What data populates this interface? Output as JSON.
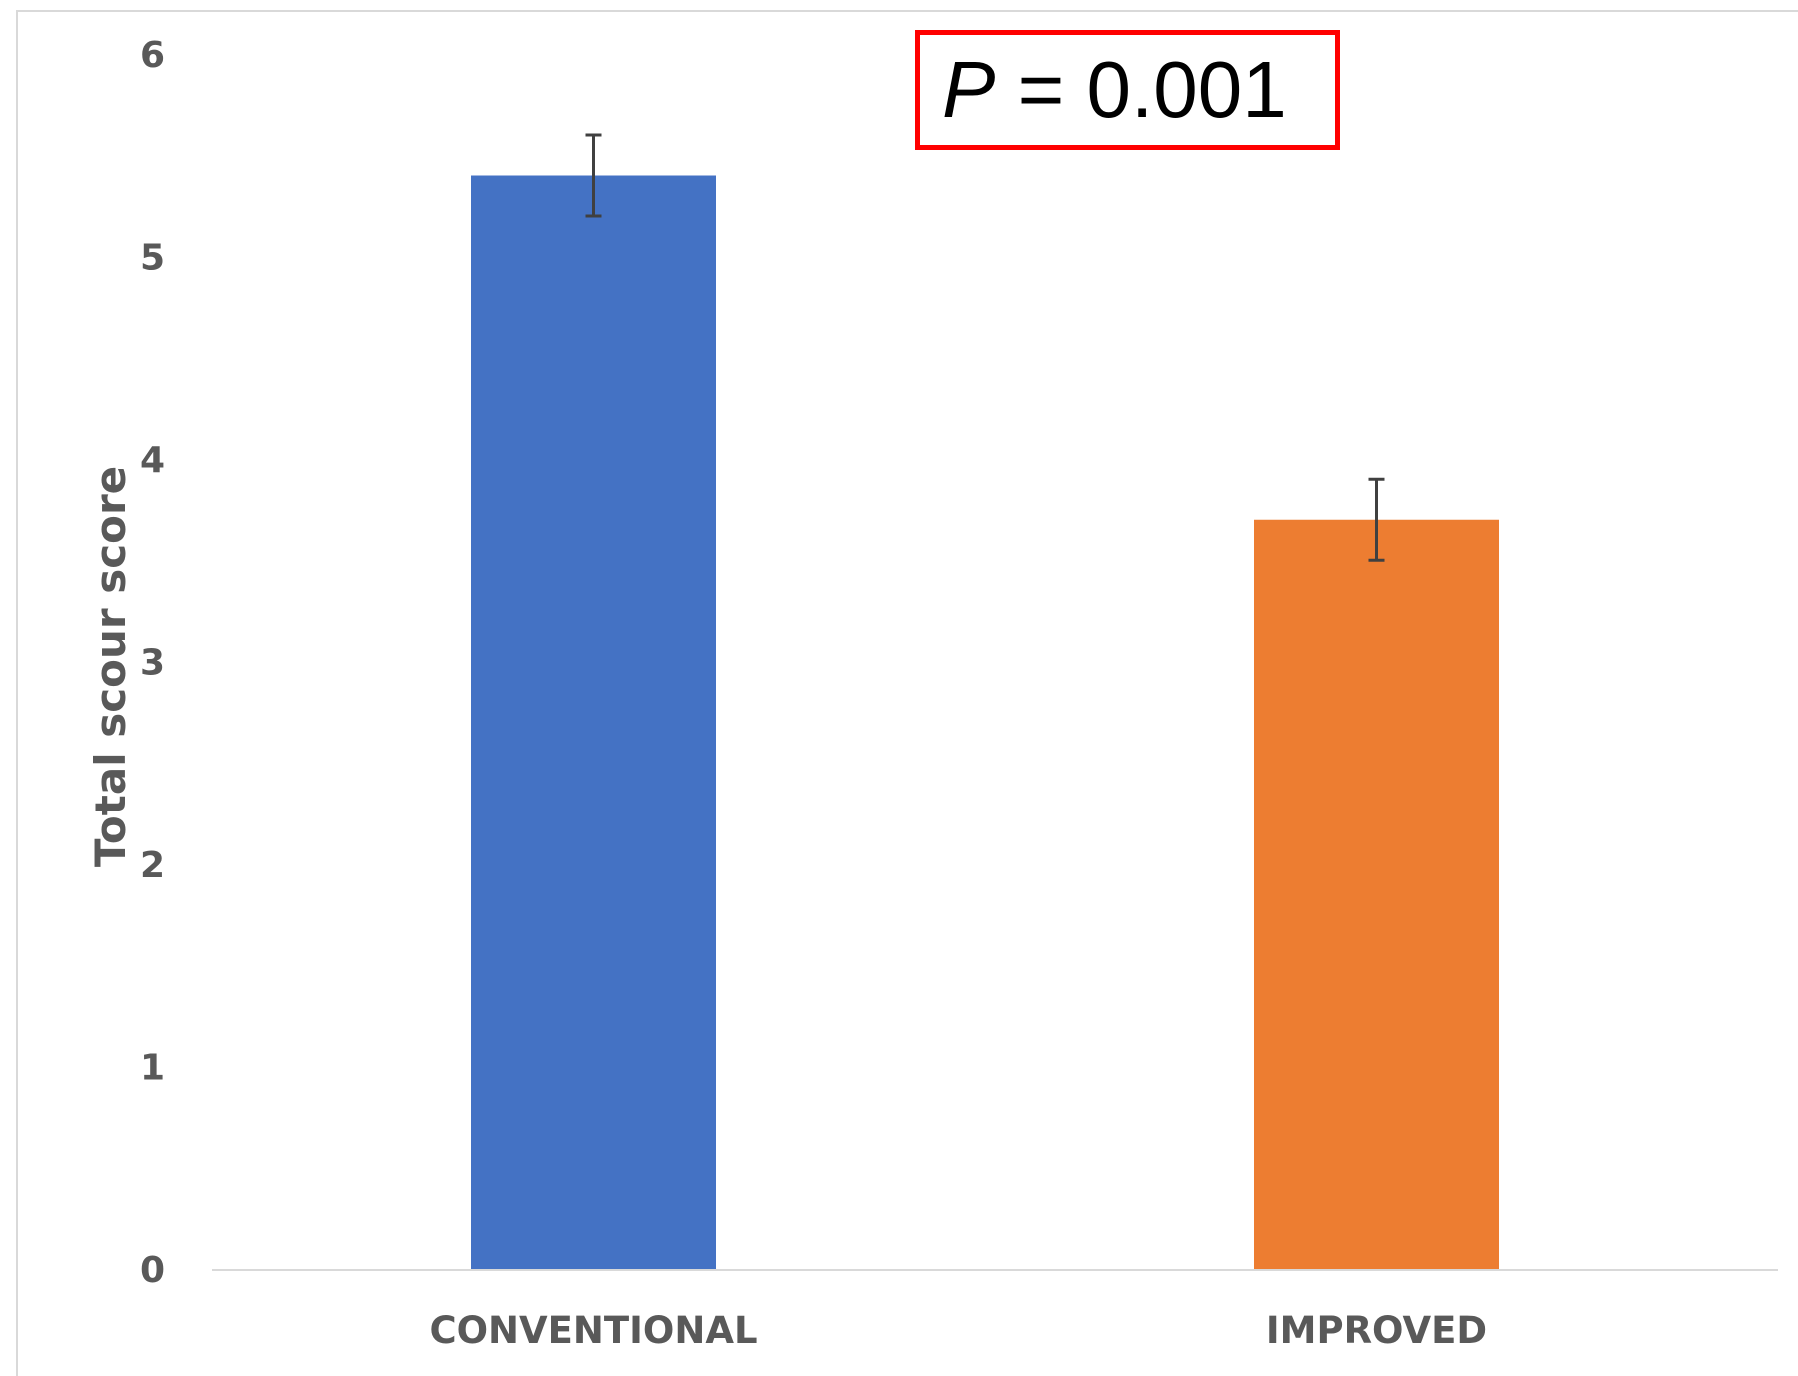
{
  "chart_data": {
    "type": "bar",
    "categories": [
      "CONVENTIONAL",
      "IMPROVED"
    ],
    "values": [
      5.4,
      3.7
    ],
    "error": [
      0.2,
      0.2
    ],
    "colors": [
      "#4472C4",
      "#ED7D31"
    ],
    "ylabel": "Total scour score",
    "xlabel": "",
    "title": "",
    "ylim": [
      0,
      6
    ],
    "yticks": [
      0,
      1,
      2,
      3,
      4,
      5,
      6
    ],
    "grid": false,
    "annotation": {
      "symbol": "P",
      "text": " = 0.001",
      "border_color": "#FF0000"
    }
  }
}
